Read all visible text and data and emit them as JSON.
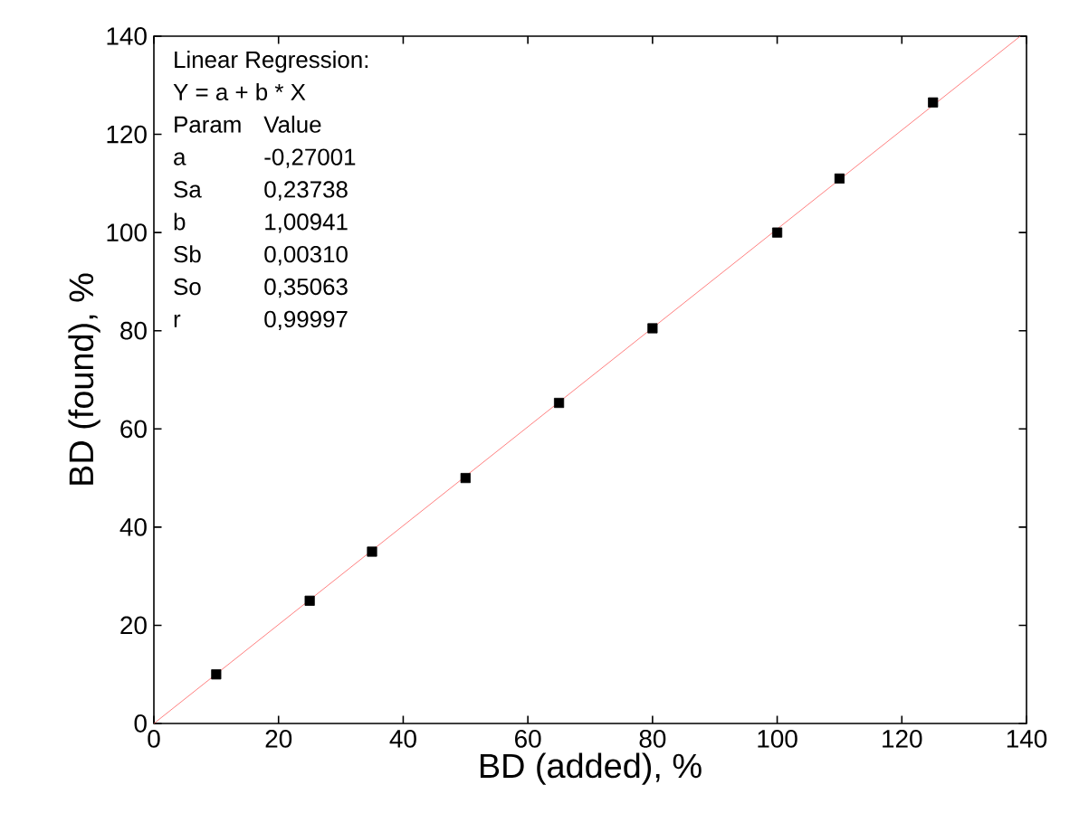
{
  "chart_data": {
    "type": "scatter",
    "xlabel": "BD (added), %",
    "ylabel": "BD (found), %",
    "series": [
      {
        "color": "#000000",
        "marker": "square",
        "x": [
          10,
          25,
          35,
          50,
          65,
          80,
          100,
          110,
          125
        ],
        "values": [
          10,
          25,
          35,
          50,
          65.3,
          80.5,
          100,
          111,
          126.5
        ]
      },
      {
        "type": "line",
        "color": "#ff6060",
        "marker": "none",
        "x": [
          0,
          139
        ],
        "values": [
          0,
          140
        ]
      }
    ],
    "xlim": [
      0,
      140
    ],
    "ylim": [
      0,
      140
    ],
    "xticks": [
      0,
      20,
      40,
      60,
      80,
      100,
      120,
      140
    ],
    "yticks": [
      0,
      20,
      40,
      60,
      80,
      100,
      120,
      140
    ],
    "annotations": [
      "Linear Regression:",
      "Y = a + b * X",
      "Param",
      "Value",
      "a",
      "-0,27001",
      "Sa",
      "0,23738",
      "b",
      "1,00941",
      "Sb",
      "0,00310",
      "So",
      "0,35063",
      "r",
      "0,99997"
    ]
  }
}
